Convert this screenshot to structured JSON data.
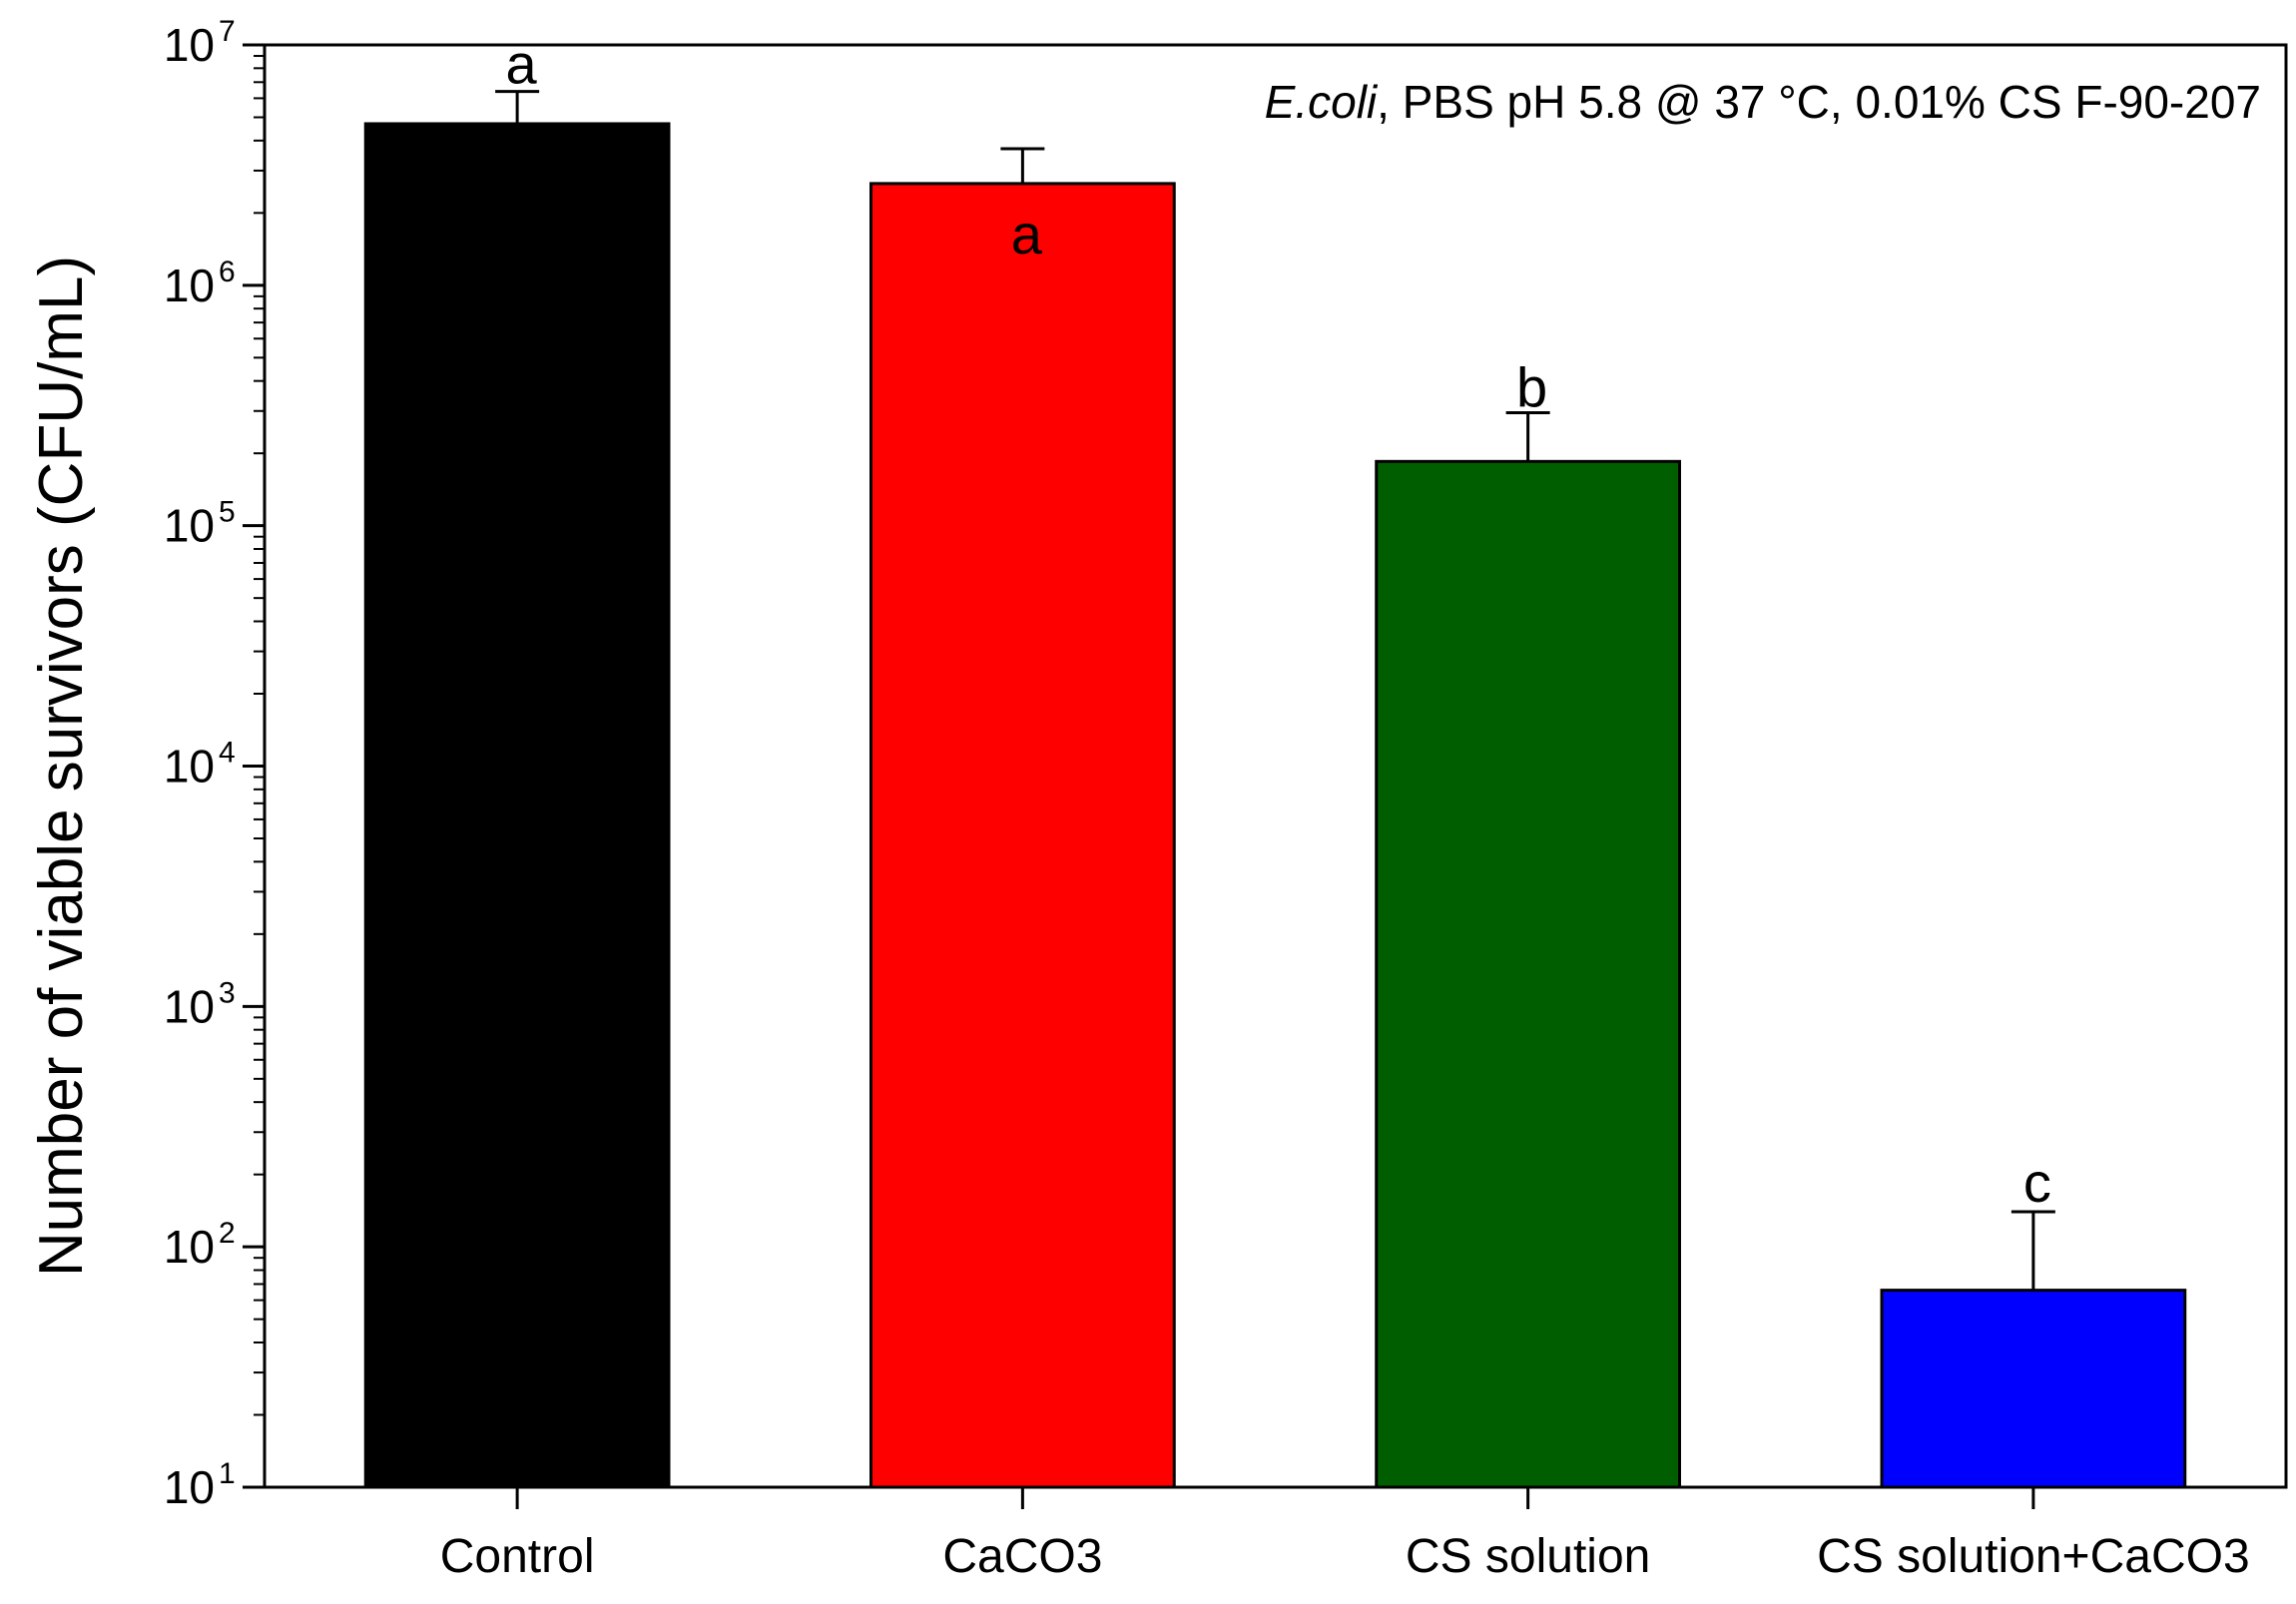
{
  "chart_data": {
    "type": "bar",
    "title": "",
    "annotation": {
      "organism": "E.coli",
      "conditions": ", PBS pH 5.8 @  37 °C, 0.01% CS F-90-207"
    },
    "xlabel": "",
    "ylabel": "Number of viable survivors (CFU/mL)",
    "yscale": "log",
    "ylim": [
      10,
      10000000
    ],
    "y_ticks": [
      {
        "base": "10",
        "exp": "1"
      },
      {
        "base": "10",
        "exp": "2"
      },
      {
        "base": "10",
        "exp": "3"
      },
      {
        "base": "10",
        "exp": "4"
      },
      {
        "base": "10",
        "exp": "5"
      },
      {
        "base": "10",
        "exp": "6"
      },
      {
        "base": "10",
        "exp": "7"
      }
    ],
    "categories": [
      "Control",
      "CaCO3",
      "CS solution",
      "CS solution+CaCO3"
    ],
    "values": [
      4700000,
      2650000,
      185000,
      66
    ],
    "error_upper": [
      6400000,
      3700000,
      295000,
      140
    ],
    "significance": [
      "a",
      "a",
      "b",
      "c"
    ],
    "colors": [
      "#000000",
      "#ff0000",
      "#005e00",
      "#0000ff"
    ],
    "grid": false
  }
}
